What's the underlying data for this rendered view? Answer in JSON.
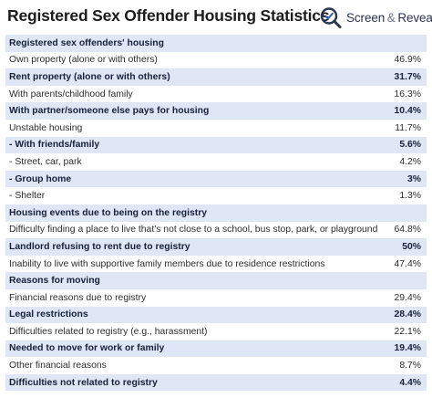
{
  "title": "Registered Sex Offender Housing Statistics",
  "brand": {
    "name_part1": "Screen",
    "amp": "&",
    "name_part2": "Reveal",
    "icon": "magnifier-check-icon"
  },
  "colors": {
    "shade": "#dfe6f5",
    "brand": "#2a3650",
    "accent": "#3b5bb5"
  },
  "rows": [
    {
      "type": "section",
      "label": "Registered sex offenders' housing",
      "value": ""
    },
    {
      "type": "plain",
      "label": "Own property (alone or with others)",
      "value": "46.9%"
    },
    {
      "type": "shaded",
      "label": "Rent property (alone or with others)",
      "value": "31.7%"
    },
    {
      "type": "plain",
      "label": "With parents/childhood family",
      "value": "16.3%"
    },
    {
      "type": "shaded",
      "label": "With partner/someone else pays for housing",
      "value": "10.4%"
    },
    {
      "type": "plain",
      "label": "Unstable housing",
      "value": "11.7%"
    },
    {
      "type": "shaded",
      "label": "- With friends/family",
      "value": "5.6%"
    },
    {
      "type": "plain",
      "label": "- Street, car, park",
      "value": "4.2%"
    },
    {
      "type": "shaded",
      "label": "- Group home",
      "value": "3%"
    },
    {
      "type": "plain",
      "label": "- Shelter",
      "value": "1.3%"
    },
    {
      "type": "section",
      "label": "Housing events due to being on the registry",
      "value": ""
    },
    {
      "type": "plain",
      "label": "Difficulty finding a place to live that's not close to a school, bus stop, park, or playground",
      "value": "64.8%"
    },
    {
      "type": "shaded",
      "label": "Landlord refusing to rent due to registry",
      "value": "50%"
    },
    {
      "type": "plain",
      "label": "Inability to live with supportive family members due to residence restrictions",
      "value": "47.4%"
    },
    {
      "type": "section",
      "label": "Reasons for moving",
      "value": ""
    },
    {
      "type": "plain",
      "label": "Financial reasons due to registry",
      "value": "29.4%"
    },
    {
      "type": "shaded",
      "label": "Legal restrictions",
      "value": "28.4%"
    },
    {
      "type": "plain",
      "label": "Difficulties related to registry (e.g., harassment)",
      "value": "22.1%"
    },
    {
      "type": "shaded",
      "label": "Needed to move for work or family",
      "value": "19.4%"
    },
    {
      "type": "plain",
      "label": "Other financial reasons",
      "value": "8.7%"
    },
    {
      "type": "shaded",
      "label": "Difficulties not related to registry",
      "value": "4.4%"
    }
  ]
}
